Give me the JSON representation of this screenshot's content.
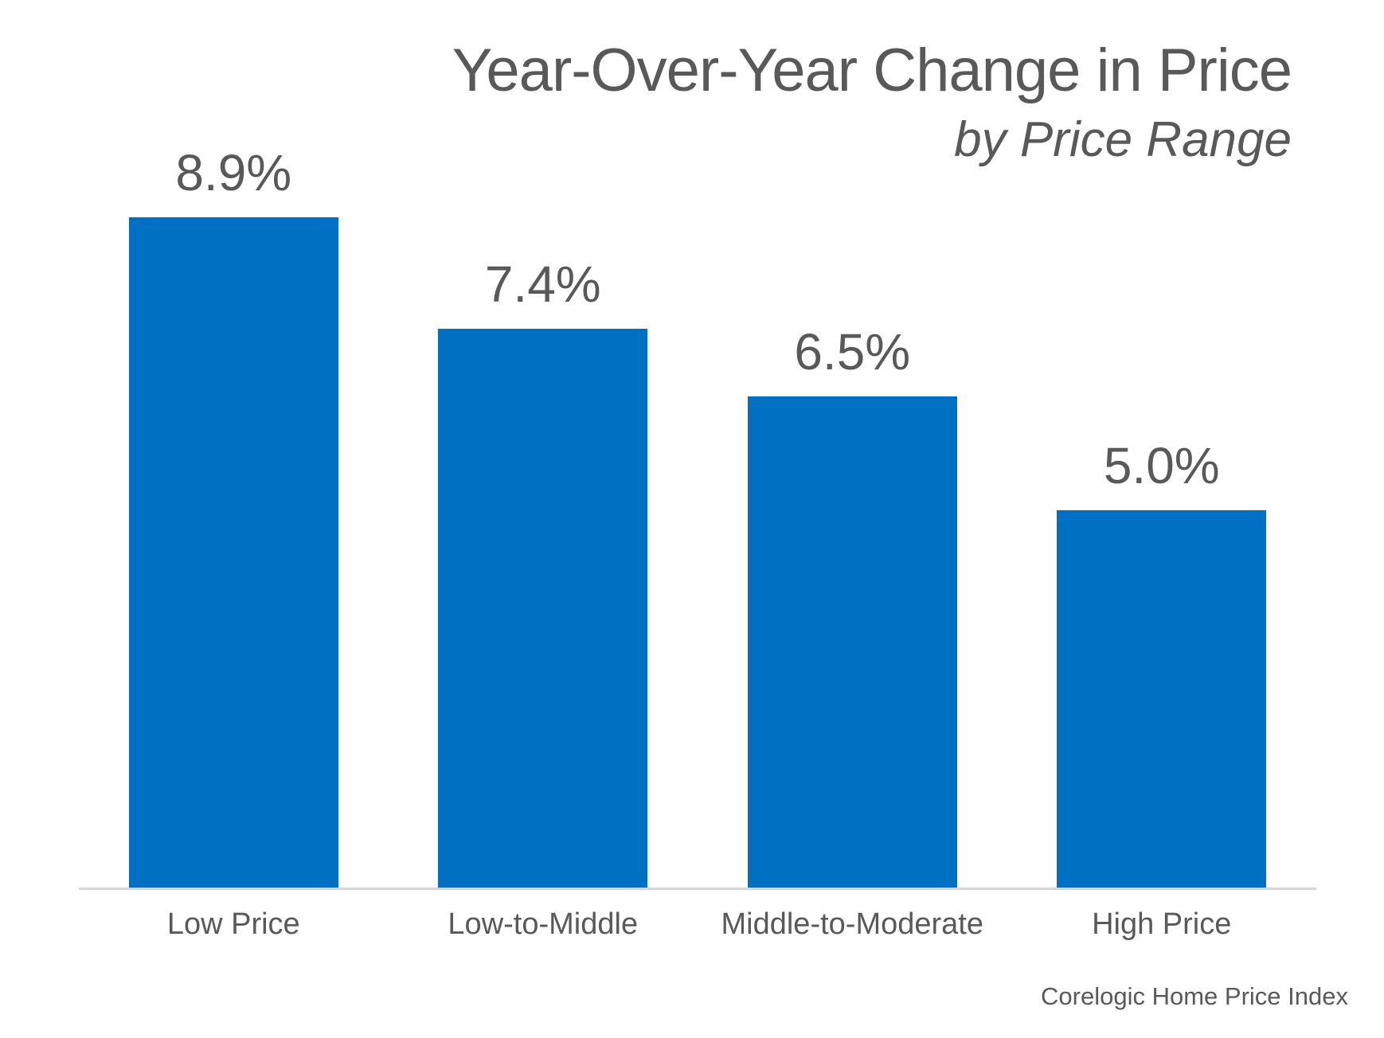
{
  "header": {
    "title": "Year-Over-Year Change in Price",
    "subtitle": "by Price Range"
  },
  "chart_data": {
    "type": "bar",
    "title": "Year-Over-Year Change in Price",
    "subtitle": "by Price Range",
    "categories": [
      "Low Price",
      "Low-to-Middle",
      "Middle-to-Moderate",
      "High Price"
    ],
    "values": [
      8.9,
      7.4,
      6.5,
      5.0
    ],
    "value_labels": [
      "8.9%",
      "7.4%",
      "6.5%",
      "5.0%"
    ],
    "ylabel": "",
    "xlabel": "",
    "ylim": [
      0,
      9.8
    ],
    "grid": false,
    "legend_position": "none",
    "bar_color": "#0071C2",
    "text_color": "#595959",
    "axis_line_color": "#D6D6D6",
    "source": "Corelogic Home Price Index"
  },
  "footer": {
    "source": "Corelogic Home Price Index"
  }
}
